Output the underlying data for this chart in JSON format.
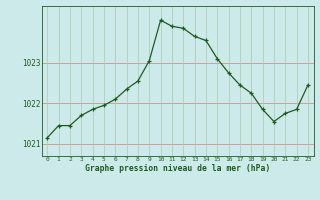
{
  "x": [
    0,
    1,
    2,
    3,
    4,
    5,
    6,
    7,
    8,
    9,
    10,
    11,
    12,
    13,
    14,
    15,
    16,
    17,
    18,
    19,
    20,
    21,
    22,
    23
  ],
  "y": [
    1021.15,
    1021.45,
    1021.45,
    1021.7,
    1021.85,
    1021.95,
    1022.1,
    1022.35,
    1022.55,
    1023.05,
    1024.05,
    1023.9,
    1023.85,
    1023.65,
    1023.55,
    1023.1,
    1022.75,
    1022.45,
    1022.25,
    1021.85,
    1021.55,
    1021.75,
    1021.85,
    1022.45
  ],
  "line_color": "#1e5c1e",
  "bg_color": "#cdeaea",
  "grid_color_h": "#d08080",
  "grid_color_v": "#b0c8b0",
  "label_color": "#1e5c1e",
  "xlabel": "Graphe pression niveau de la mer (hPa)",
  "ytick_labels": [
    "1021",
    "1022",
    "1023"
  ],
  "ytick_vals": [
    1021,
    1022,
    1023
  ],
  "xtick_labels": [
    "0",
    "1",
    "2",
    "3",
    "4",
    "5",
    "6",
    "7",
    "8",
    "9",
    "10",
    "11",
    "12",
    "13",
    "14",
    "15",
    "16",
    "17",
    "18",
    "19",
    "20",
    "21",
    "22",
    "23"
  ],
  "ylim": [
    1020.7,
    1024.4
  ],
  "xlim": [
    -0.5,
    23.5
  ],
  "bottom_bar_color": "#2d6e2d",
  "bottom_bar_bg": "#2d6e2d"
}
